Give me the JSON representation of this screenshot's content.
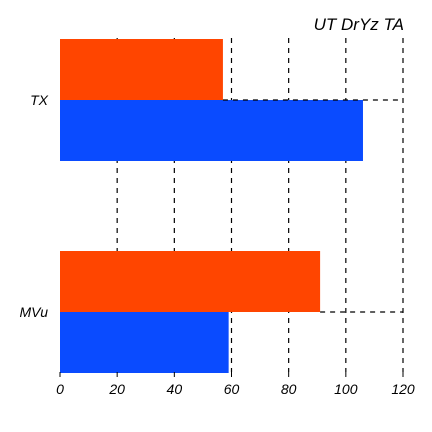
{
  "chart_data": {
    "type": "bar",
    "orientation": "horizontal",
    "title": "UT DrYz TA",
    "xlabel": "",
    "ylabel": "",
    "categories": [
      "TX",
      "MVu"
    ],
    "series": [
      {
        "color": "#ff4500",
        "values": [
          57,
          91
        ]
      },
      {
        "color": "#0a4bff",
        "values": [
          106,
          59
        ]
      }
    ],
    "xlim": [
      0,
      120
    ],
    "xticks": [
      0,
      20,
      40,
      60,
      80,
      100,
      120
    ],
    "xtick_labels": [
      "0",
      "20",
      "40",
      "60",
      "80",
      "100",
      "120"
    ],
    "grid": "x-dashed",
    "legend": "none"
  }
}
